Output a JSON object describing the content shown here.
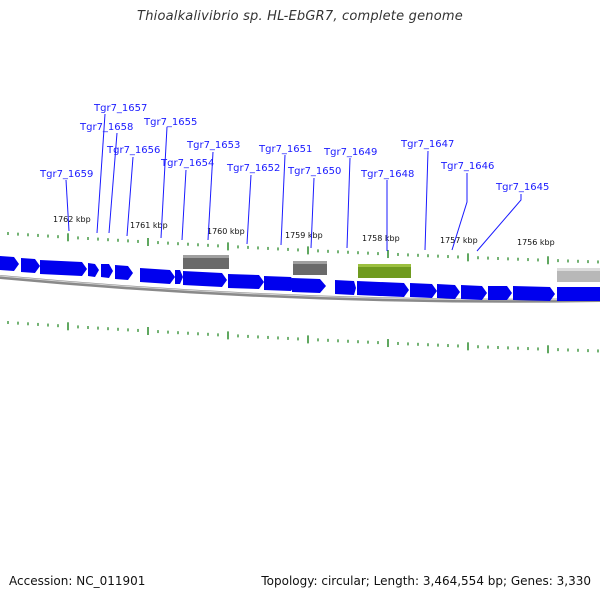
{
  "title": "Thioalkalivibrio sp. HL-EbGR7, complete genome",
  "footer": {
    "accession": "Accession: NC_011901",
    "summary": "Topology: circular; Length: 3,464,554 bp; Genes: 3,330"
  },
  "colors": {
    "gene": "#0000ee",
    "gene_label": "#1a1aff",
    "tick": "#2a8a2a",
    "backbone": "#8a8a8a",
    "feature_gray": "#6a6a6a",
    "feature_green": "#6f9a1f",
    "feature_light": "#b8b8b8"
  },
  "kbp_ticks": [
    "1762 kbp",
    "1761 kbp",
    "1760 kbp",
    "1759 kbp",
    "1758 kbp",
    "1757 kbp",
    "1756 kbp"
  ],
  "gene_labels": [
    "Tgr7_1657",
    "Tgr7_1658",
    "Tgr7_1655",
    "Tgr7_1656",
    "Tgr7_1653",
    "Tgr7_1654",
    "Tgr7_1651",
    "Tgr7_1652",
    "Tgr7_1649",
    "Tgr7_1650",
    "Tgr7_1647",
    "Tgr7_1648",
    "Tgr7_1659",
    "Tgr7_1646",
    "Tgr7_1645"
  ]
}
